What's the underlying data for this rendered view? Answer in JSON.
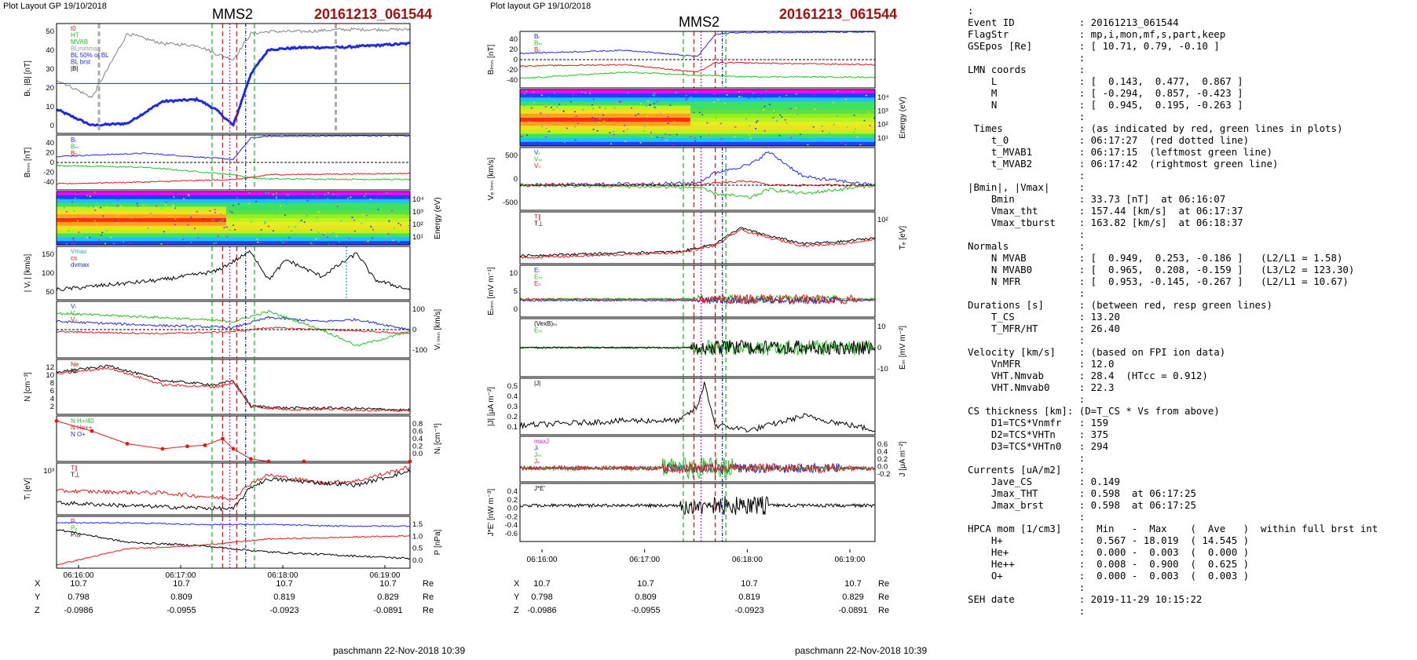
{
  "left": {
    "header": "Plot Layout GP 19/10/2018",
    "title": "MMS2",
    "event": "20161213_061544",
    "footer": "paschmann 22-Nov-2018 10:39",
    "xticks": [
      "06:16:00",
      "06:17:00",
      "06:18:00",
      "06:19:00"
    ],
    "pos_rows": [
      {
        "label": "X",
        "vals": [
          "10.7",
          "10.7",
          "10.7",
          "10.7"
        ],
        "unit": "Re"
      },
      {
        "label": "Y",
        "vals": [
          "0.798",
          "0.809",
          "0.819",
          "0.829"
        ],
        "unit": "Re"
      },
      {
        "label": "Z",
        "vals": [
          "-0.0986",
          "-0.0955",
          "-0.0923",
          "-0.0891"
        ],
        "unit": "Re"
      }
    ]
  },
  "middle": {
    "header": "Plot layout GP 19/10/2018",
    "title": "MMS2",
    "event": "20161213_061544",
    "footer": "paschmann 22-Nov-2018 10:39",
    "xticks": [
      "06:16:00",
      "06:17:00",
      "06:18:00",
      "06:19:00"
    ],
    "pos_rows": [
      {
        "label": "X",
        "vals": [
          "10.7",
          "10.7",
          "10.7",
          "10.7"
        ],
        "unit": "Re"
      },
      {
        "label": "Y",
        "vals": [
          "0.798",
          "0.809",
          "0.819",
          "0.829"
        ],
        "unit": "Re"
      },
      {
        "label": "Z",
        "vals": [
          "-0.0986",
          "-0.0955",
          "-0.0923",
          "-0.0891"
        ],
        "unit": "Re"
      }
    ]
  },
  "colors": {
    "blue": "#1f2bd8",
    "red": "#e01818",
    "green": "#20c020",
    "black": "#000000",
    "gray": "#808080",
    "magenta": "#d020d0",
    "cyan": "#20a8e0"
  },
  "chart_data": [
    {
      "type": "line",
      "panel": "left-1",
      "ylabel": "Bₗ, |B| [nT]",
      "ylim": [
        0,
        55
      ],
      "yticks": [
        "50",
        "40",
        "30",
        "20",
        "10",
        "0"
      ],
      "legend": [
        "t0",
        "HT",
        "MVAB",
        "BLminmax",
        "BL 50% of BL",
        "BL brst",
        "|B|"
      ],
      "x": [
        0,
        0.1,
        0.2,
        0.3,
        0.4,
        0.45,
        0.5,
        0.55,
        0.6,
        0.7,
        0.8,
        0.9,
        1
      ],
      "series": [
        {
          "values": [
            12,
            4,
            5,
            16,
            17,
            12,
            4,
            30,
            42,
            43,
            43,
            44,
            45
          ]
        },
        {
          "values": [
            27,
            18,
            50,
            45,
            44,
            40,
            37,
            50,
            51,
            51,
            52,
            52,
            52
          ]
        },
        {
          "values": [
            25,
            25,
            25,
            25,
            25,
            25,
            25,
            25,
            25,
            25,
            25,
            25,
            25
          ]
        }
      ]
    },
    {
      "type": "line",
      "panel": "left-2",
      "ylabel": "Bₗₘₙ [nT]",
      "ylim": [
        -45,
        45
      ],
      "yticks": [
        "40",
        "20",
        "0",
        "-20",
        "-40"
      ],
      "legend": [
        "Bₗ",
        "Bₘ",
        "Bₙ"
      ],
      "x": [
        0,
        0.25,
        0.5,
        0.55,
        0.6,
        1
      ],
      "series": [
        {
          "name": "Bₗ",
          "values": [
            10,
            15,
            5,
            40,
            43,
            44
          ]
        },
        {
          "name": "Bₘ",
          "values": [
            -5,
            -8,
            -20,
            -25,
            -27,
            -28
          ]
        },
        {
          "name": "Bₙ",
          "values": [
            -35,
            -32,
            -28,
            -25,
            -20,
            -18
          ]
        }
      ]
    },
    {
      "type": "heatmap",
      "panel": "left-3",
      "ylabel": "Energy (eV)",
      "yticks": [
        "10⁴",
        "10³",
        "10²",
        "10¹"
      ]
    },
    {
      "type": "line",
      "panel": "left-4",
      "ylabel": "| Vᵢ | [km/s]",
      "ylim": [
        0,
        160
      ],
      "yticks": [
        "150",
        "100",
        "50"
      ],
      "legend": [
        "Vmax",
        "cs",
        "dvmax"
      ],
      "x": [
        0,
        0.15,
        0.3,
        0.45,
        0.55,
        0.6,
        0.65,
        0.75,
        0.85,
        0.9,
        1
      ],
      "series": [
        {
          "values": [
            30,
            45,
            60,
            85,
            145,
            60,
            120,
            70,
            140,
            60,
            30
          ]
        }
      ]
    },
    {
      "type": "line",
      "panel": "left-5",
      "ylabel": "Vᵢ ₗₘₙ [km/s]",
      "ylim": [
        -140,
        140
      ],
      "yticks": [
        "100",
        "0",
        "-100"
      ],
      "legend": [
        "Vₗ",
        "Vₘ",
        "Vₙ"
      ],
      "x": [
        0,
        0.3,
        0.5,
        0.6,
        0.75,
        0.85,
        1
      ],
      "series": [
        {
          "name": "Vₗ",
          "values": [
            40,
            20,
            10,
            60,
            40,
            50,
            0
          ]
        },
        {
          "name": "Vₘ",
          "values": [
            80,
            60,
            40,
            90,
            0,
            -80,
            -10
          ]
        },
        {
          "name": "Vₙ",
          "values": [
            -10,
            -20,
            -10,
            10,
            0,
            -5,
            -20
          ]
        }
      ]
    },
    {
      "type": "line",
      "panel": "left-6",
      "ylabel": "N [cm⁻³]",
      "ylim": [
        0,
        13
      ],
      "yticks": [
        "12",
        "10",
        "8",
        "6",
        "4",
        "2"
      ],
      "legend": [
        "Ne",
        "Ni"
      ],
      "x": [
        0,
        0.15,
        0.3,
        0.45,
        0.5,
        0.55,
        0.65,
        0.8,
        1
      ],
      "series": [
        {
          "name": "Ne",
          "values": [
            10,
            11.5,
            8,
            7,
            8,
            2,
            1.5,
            1.5,
            1
          ]
        },
        {
          "name": "Ni",
          "values": [
            9.5,
            11,
            7,
            6.5,
            7.5,
            1.8,
            1.2,
            1.2,
            0.8
          ]
        }
      ]
    },
    {
      "type": "line",
      "panel": "left-7",
      "ylabel": "Nᵢ [cm⁻³]",
      "ylim": [
        0,
        0.9
      ],
      "yticks": [
        "0.8",
        "0.6",
        "0.4",
        "0.2",
        "0.0"
      ],
      "legend": [
        "N H+/40",
        "N He++",
        "N O+"
      ],
      "x": [
        0,
        0.1,
        0.2,
        0.3,
        0.37,
        0.42,
        0.47,
        0.5,
        0.55,
        0.6,
        0.7,
        1
      ],
      "series": [
        {
          "name": "N He++",
          "values": [
            0.8,
            0.6,
            0.35,
            0.25,
            0.3,
            0.32,
            0.45,
            0.25,
            0.05,
            0.0,
            0.0,
            0.0
          ]
        }
      ]
    },
    {
      "type": "line",
      "panel": "left-8",
      "ylabel": "Tᵢ [eV]",
      "yticks": [
        "10³"
      ],
      "legend": [
        "T∥",
        "T⊥"
      ],
      "x": [
        0,
        0.3,
        0.5,
        0.55,
        0.6,
        0.75,
        0.85,
        1
      ],
      "series": [
        {
          "name": "T∥",
          "values": [
            0.6,
            0.55,
            0.4,
            0.8,
            1.0,
            0.8,
            0.85,
            1.2
          ]
        },
        {
          "name": "T⊥",
          "values": [
            0.3,
            0.2,
            0.15,
            0.7,
            0.9,
            0.8,
            0.75,
            1.1
          ]
        }
      ]
    },
    {
      "type": "line",
      "panel": "left-9",
      "ylabel": "P [nPa]",
      "ylim": [
        0,
        1.6
      ],
      "yticks": [
        "1.5",
        "1.0",
        "0.5",
        "0.0"
      ],
      "legend": [
        "P",
        "Pₑ",
        "Pₜₒₜ"
      ],
      "x": [
        0,
        0.2,
        0.4,
        0.6,
        0.8,
        1
      ],
      "series": [
        {
          "values": [
            1.4,
            1.4,
            1.35,
            1.35,
            1.3,
            1.3
          ]
        },
        {
          "values": [
            1.2,
            0.8,
            0.7,
            0.5,
            0.4,
            0.3
          ]
        },
        {
          "values": [
            0.1,
            0.6,
            0.7,
            0.9,
            0.95,
            1.0
          ]
        }
      ]
    },
    {
      "type": "line",
      "panel": "mid-1",
      "ylabel": "Bₗₘₙ [nT]",
      "ylim": [
        -45,
        45
      ],
      "yticks": [
        "40",
        "20",
        "0",
        "-20",
        "-40"
      ],
      "legend": [
        "Bₗ",
        "Bₘ",
        "Bₙ"
      ],
      "x": [
        0,
        0.3,
        0.5,
        0.55,
        0.6,
        1
      ],
      "series": [
        {
          "name": "Bₗ",
          "values": [
            10,
            15,
            5,
            40,
            43,
            44
          ]
        },
        {
          "name": "Bₘ",
          "values": [
            -30,
            -20,
            -25,
            -25,
            -27,
            -28
          ]
        },
        {
          "name": "Bₙ",
          "values": [
            -10,
            -8,
            -20,
            -5,
            -5,
            -8
          ]
        }
      ]
    },
    {
      "type": "heatmap",
      "panel": "mid-2",
      "ylabel": "Energy (eV)",
      "yticks": [
        "10⁴",
        "10³",
        "10²",
        "10¹"
      ]
    },
    {
      "type": "line",
      "panel": "mid-3",
      "ylabel": "Vₑ ₗₘₙ [km/s]",
      "ylim": [
        -600,
        900
      ],
      "yticks": [
        "500",
        "0",
        "-500"
      ],
      "legend": [
        "Vₗ",
        "Vₘ",
        "Vₙ"
      ],
      "x": [
        0,
        0.5,
        0.55,
        0.65,
        0.7,
        0.8,
        1
      ],
      "series": [
        {
          "name": "Vₗ",
          "values": [
            0,
            50,
            300,
            500,
            800,
            200,
            0
          ]
        },
        {
          "name": "Vₘ",
          "values": [
            0,
            -50,
            -200,
            -300,
            -100,
            -200,
            0
          ]
        },
        {
          "name": "Vₙ",
          "values": [
            0,
            0,
            50,
            100,
            0,
            0,
            0
          ]
        }
      ]
    },
    {
      "type": "line",
      "panel": "mid-4",
      "ylabel": "Tₑ [eV]",
      "yticks": [
        "10²"
      ],
      "legend": [
        "T∥",
        "T⊥"
      ],
      "x": [
        0,
        0.2,
        0.45,
        0.55,
        0.62,
        0.7,
        0.8,
        0.9,
        1
      ],
      "series": [
        {
          "name": "T∥",
          "values": [
            0.2,
            0.25,
            0.3,
            0.5,
            0.9,
            0.7,
            0.5,
            0.55,
            0.65
          ]
        },
        {
          "name": "T⊥",
          "values": [
            0.15,
            0.2,
            0.28,
            0.45,
            0.85,
            0.65,
            0.45,
            0.5,
            0.6
          ]
        }
      ]
    },
    {
      "type": "line",
      "panel": "mid-5",
      "ylabel": "Eₗₘₙ [mV m⁻¹]",
      "ylim": [
        -15,
        15
      ],
      "yticks": [
        "10",
        "5",
        "0"
      ],
      "legend": [
        "Eₗ",
        "Eₘ",
        "Eₙ"
      ]
    },
    {
      "type": "line",
      "panel": "mid-6",
      "ylabel": "Eₘ [mV m⁻²]",
      "ylim": [
        -15,
        15
      ],
      "yticks": [
        "10",
        "0",
        "-10"
      ],
      "legend": [
        "(VexB)ₘ",
        "Eₘ"
      ]
    },
    {
      "type": "line",
      "panel": "mid-7",
      "ylabel": "|J| [μA m⁻²]",
      "ylim": [
        0,
        0.6
      ],
      "yticks": [
        "0.5",
        "0.4",
        "0.3",
        "0.2",
        "0.1"
      ],
      "legend": [
        "|J|"
      ],
      "x": [
        0,
        0.3,
        0.45,
        0.5,
        0.52,
        0.55,
        0.65,
        0.8,
        1
      ],
      "series": [
        {
          "values": [
            0.1,
            0.15,
            0.15,
            0.3,
            0.55,
            0.1,
            0.05,
            0.2,
            0.05
          ]
        }
      ]
    },
    {
      "type": "line",
      "panel": "mid-8",
      "ylabel": "J [μA m⁻²]",
      "ylim": [
        -0.3,
        0.6
      ],
      "yticks": [
        "0.6",
        "0.4",
        "0.2",
        "0.0",
        "-0.2"
      ],
      "legend": [
        "maxJ",
        "Jₗ",
        "Jₘ",
        "Jₙ"
      ]
    },
    {
      "type": "line",
      "panel": "mid-9",
      "ylabel": "J*E' [nW m⁻³]",
      "ylim": [
        -0.65,
        0.45
      ],
      "yticks": [
        "0.4",
        "0.2",
        "0.0",
        "-0.2",
        "-0.4",
        "-0.6"
      ],
      "legend": [
        "J*E'"
      ]
    }
  ],
  "info_lines": [
    ":",
    "Event ID           : 20161213_061544",
    "FlagStr            : mp,i,mon,mf,s,part,keep",
    "GSEpos [Re]        : [ 10.71, 0.79, -0.10 ]",
    "                   :",
    "LMN coords         :",
    "    L              : [  0.143,  0.477,  0.867 ]",
    "    M              : [ -0.294,  0.857, -0.423 ]",
    "    N              : [  0.945,  0.195, -0.263 ]",
    "                   :",
    " Times             : (as indicated by red, green lines in plots)",
    "    t_0            : 06:17:27  (red dotted line)",
    "    t_MVAB1        : 06:17:15  (leftmost green line)",
    "    t_MVAB2        : 06:17:42  (rightmost green line)",
    "                   :",
    "|Bmin|, |Vmax|     :",
    "    Bmin           : 33.73 [nT]  at 06:16:07",
    "    Vmax_tht       : 157.44 [km/s]  at 06:17:37",
    "    Vmax_tburst    : 163.82 [km/s]  at 06:18:37",
    "                   :",
    "Normals            :",
    "    N MVAB         : [  0.949,  0.253, -0.186 ]   (L2/L1 = 1.58)",
    "    N MVAB0        : [  0.965,  0.208, -0.159 ]   (L3/L2 = 123.30)",
    "    N MFR          : [  0.953, -0.145, -0.267 ]   (L2/L1 = 10.67)",
    "                   :",
    "Durations [s]      : (between red, resp green lines)",
    "    T_CS           : 13.20",
    "    T_MFR/HT       : 26.40",
    "                   :",
    "Velocity [km/s]    : (based on FPI ion data)",
    "    VnMFR          : 12.0",
    "    VHT.Nmvab      : 28.4  (HTcc = 0.912)",
    "    VHT.Nmvab0     : 22.3",
    "                   :",
    "CS thickness [km]: (D=T_CS * Vs from above)",
    "    D1=TCS*Vnmfr   : 159",
    "    D2=TCS*VHTn    : 375",
    "    D3=TCS*VHTn0   : 294",
    "                   :",
    "Currents [uA/m2]   :",
    "    Jave_CS        : 0.149",
    "    Jmax_THT       : 0.598  at 06:17:25",
    "    Jmax_brst      : 0.598  at 06:17:25",
    "                   :",
    "HPCA mom [1/cm3]   :  Min   -  Max    (  Ave   )  within full brst int",
    "    H+             :  0.567 - 18.019  ( 14.545 )",
    "    He+            :  0.000 -  0.003  (  0.000 )",
    "    He++           :  0.008 -  0.900  (  0.625 )",
    "    O+             :  0.000 -  0.003  (  0.003 )",
    "                   :",
    "SEH date           : 2019-11-29 10:15:22",
    "                   :"
  ]
}
